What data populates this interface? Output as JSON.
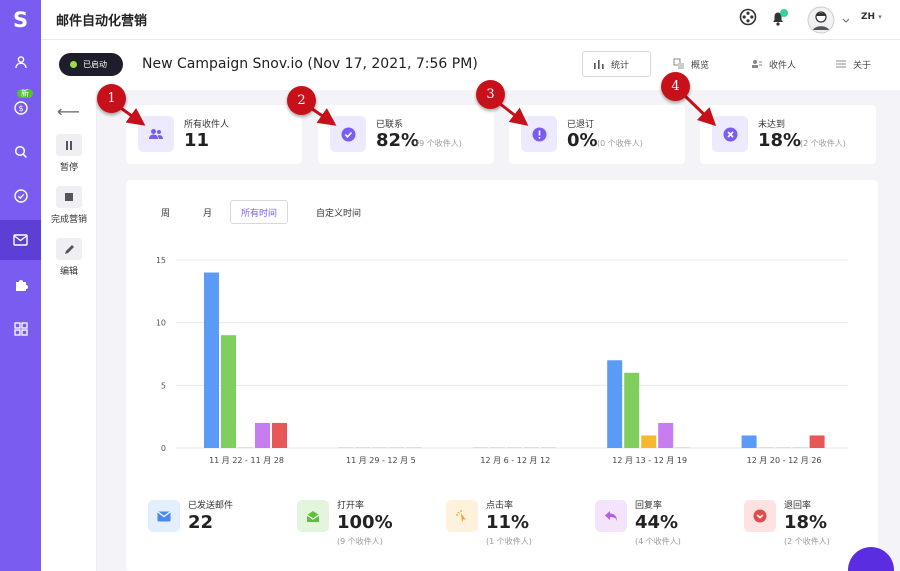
{
  "brand": {
    "logo_letter": "S",
    "accent": "#7b5cf0",
    "new_badge": "新"
  },
  "rail": {
    "items": [
      "user-icon",
      "dollar-icon",
      "search-icon",
      "check-circle-icon",
      "mail-icon",
      "puzzle-icon",
      "grid-icon"
    ],
    "active": "mail-icon"
  },
  "topbar": {
    "title": "邮件自动化营销",
    "lang": "ZH"
  },
  "subbar": {
    "status": "已启动",
    "campaign_title": "New Campaign Snov.io (Nov 17, 2021, 7:56 PM)",
    "tabs": [
      {
        "label": "统计",
        "active": true
      },
      {
        "label": "概览"
      },
      {
        "label": "收件人"
      },
      {
        "label": "关于"
      }
    ]
  },
  "left_panel": {
    "items": [
      {
        "label": "暂停",
        "icon": "pause-icon"
      },
      {
        "label": "完成营销",
        "icon": "stop-icon"
      },
      {
        "label": "编辑",
        "icon": "pencil-icon"
      }
    ]
  },
  "stats": [
    {
      "marker": "1",
      "label": "所有收件人",
      "value": "11",
      "sub": ""
    },
    {
      "marker": "2",
      "label": "已联系",
      "value": "82%",
      "sub": "(9 个收件人)"
    },
    {
      "marker": "3",
      "label": "已退订",
      "value": "0%",
      "sub": "(0 个收件人)"
    },
    {
      "marker": "4",
      "label": "未达到",
      "value": "18%",
      "sub": "(2 个收件人)"
    }
  ],
  "range_tabs": [
    {
      "label": "周"
    },
    {
      "label": "月"
    },
    {
      "label": "所有时间",
      "active": true
    },
    {
      "label": "自定义时间"
    }
  ],
  "chart_data": {
    "type": "bar",
    "categories": [
      "11 月 22 - 11 月 28",
      "11 月 29 - 12 月 5",
      "12 月 6 - 12 月 12",
      "12 月 13 - 12 月 19",
      "12 月 20 - 12 月 26"
    ],
    "series": [
      {
        "values": [
          14,
          0,
          0,
          7,
          1
        ],
        "color": "#5b9bf5"
      },
      {
        "values": [
          9,
          0,
          0,
          6,
          0
        ],
        "color": "#7ecf5e"
      },
      {
        "values": [
          0,
          0,
          0,
          1,
          0
        ],
        "color": "#f7b731"
      },
      {
        "values": [
          2,
          0,
          0,
          2,
          0
        ],
        "color": "#c77cf0"
      },
      {
        "values": [
          2,
          0,
          0,
          0,
          1
        ],
        "color": "#e85757"
      }
    ],
    "yticks": [
      "0",
      "5",
      "10",
      "15"
    ],
    "ylim": [
      0,
      15
    ]
  },
  "metrics": [
    {
      "label": "已发送邮件",
      "value": "22",
      "sub": "",
      "icon": "envelope-icon",
      "bg": "#e3eeff",
      "fg": "#4a8af0"
    },
    {
      "label": "打开率",
      "value": "100%",
      "sub": "(9 个收件人)",
      "icon": "open-envelope-icon",
      "bg": "#e3f6dd",
      "fg": "#5fbf3f"
    },
    {
      "label": "点击率",
      "value": "11%",
      "sub": "(1 个收件人)",
      "icon": "click-icon",
      "bg": "#fff2dc",
      "fg": "#f0a326"
    },
    {
      "label": "回复率",
      "value": "44%",
      "sub": "(4 个收件人)",
      "icon": "reply-icon",
      "bg": "#f3e4fb",
      "fg": "#b45ee6"
    },
    {
      "label": "退回率",
      "value": "18%",
      "sub": "(2 个收件人)",
      "icon": "bounce-icon",
      "bg": "#fde2e2",
      "fg": "#e24b4b"
    }
  ]
}
